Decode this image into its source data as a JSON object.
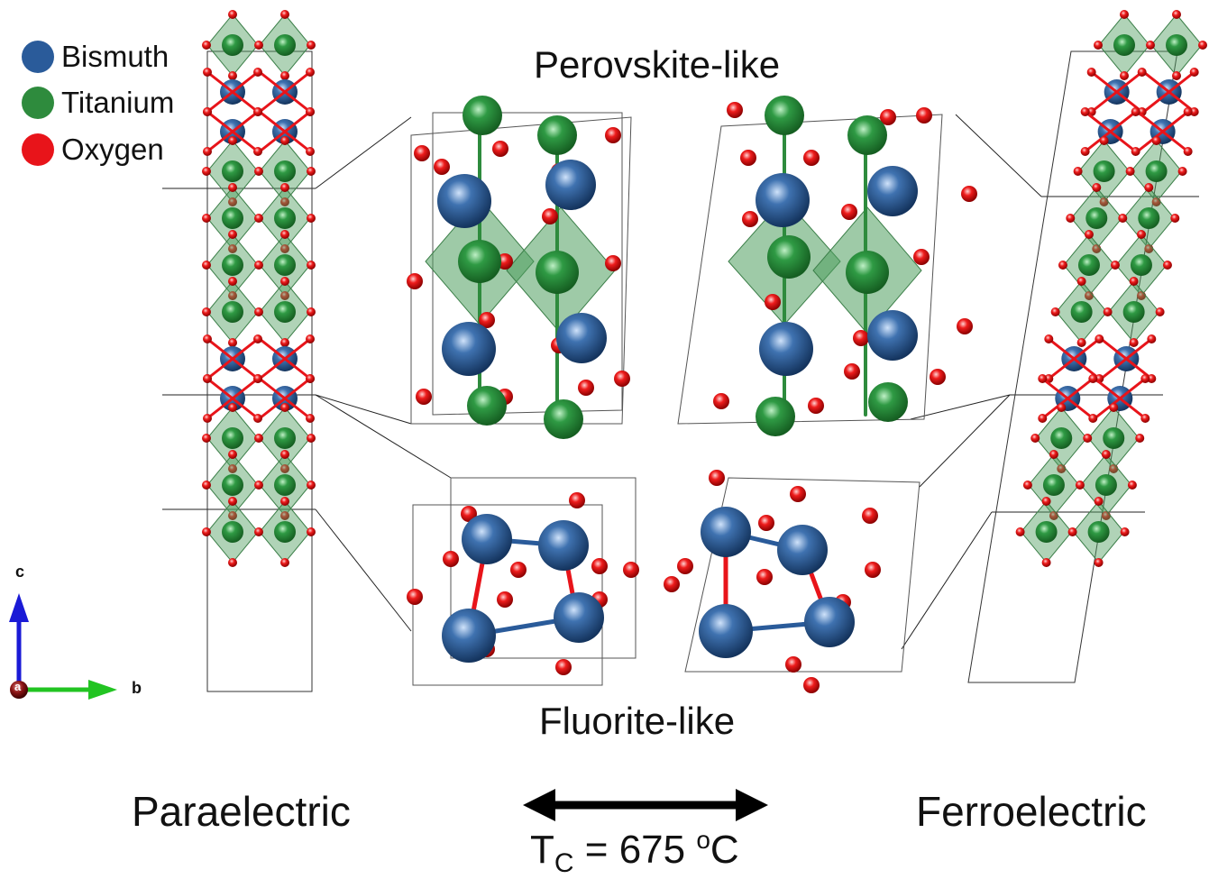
{
  "legend": [
    {
      "name": "Bismuth",
      "color": "#2a5b9a"
    },
    {
      "name": "Titanium",
      "color": "#2e8b3d"
    },
    {
      "name": "Oxygen",
      "color": "#e8141a"
    }
  ],
  "labels": {
    "perovskite": "Perovskite-like",
    "fluorite": "Fluorite-like",
    "paraelectric": "Paraelectric",
    "ferroelectric": "Ferroelectric",
    "tc_prefix": "T",
    "tc_sub": "C",
    "tc_value": " = 675 ",
    "tc_sup": "o",
    "tc_unit": "C"
  },
  "axes": {
    "c": "c",
    "b": "b",
    "a": "a"
  },
  "colors": {
    "bismuth": "#2a5b9a",
    "bismuth_dark": "#163a6e",
    "titanium": "#2e8b3d",
    "titanium_dark": "#175a22",
    "oxygen": "#e8141a",
    "octahedron": "#4a9a5a",
    "bond_bi": "#2a5b9a",
    "bond_o": "#e8141a",
    "arrow": "#000000",
    "axis_c": "#1a1ad6",
    "axis_b": "#22c422",
    "axis_a": "#7a1010"
  }
}
